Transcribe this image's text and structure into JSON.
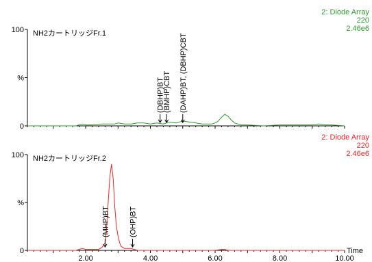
{
  "chart_data": [
    {
      "type": "line",
      "trace_title": "NH2カートリッジFr.1",
      "detector": {
        "label": "2: Diode Array",
        "channel": "220",
        "scale": "2.46e6"
      },
      "color": "#2e9a2e",
      "y_ticks": [
        {
          "value": 0,
          "label": "0"
        },
        {
          "value": 50,
          "label": "%"
        },
        {
          "value": 100,
          "label": "100"
        }
      ],
      "ylim": [
        0,
        100
      ],
      "xlim": [
        0.2,
        10.0
      ],
      "series": [
        {
          "x": [
            0.2,
            1.0,
            1.7,
            1.8,
            1.9,
            2.0,
            2.2,
            2.5,
            2.7,
            2.9,
            3.0,
            3.2,
            3.4,
            3.6,
            3.8,
            4.0,
            4.2,
            4.4,
            4.6,
            4.8,
            5.0,
            5.2,
            5.4,
            5.6,
            5.8,
            5.9,
            6.0,
            6.1,
            6.2,
            6.3,
            6.4,
            6.5,
            6.6,
            6.7,
            6.8,
            7.0,
            7.5,
            8.0,
            8.5,
            9.0,
            9.2,
            9.4,
            9.6,
            10.0
          ],
          "y": [
            0,
            0,
            0,
            1,
            2,
            1,
            1,
            2,
            2,
            2,
            3,
            2,
            2,
            3,
            3,
            2,
            3,
            2,
            4,
            3,
            5,
            4,
            3,
            2,
            2,
            2,
            3,
            5,
            9,
            12,
            10,
            6,
            3,
            2,
            1,
            1,
            0,
            1,
            1,
            1,
            2,
            1,
            1,
            0
          ]
        }
      ],
      "annotations": [
        {
          "label": "(DBHP)BT",
          "x": 4.3
        },
        {
          "label": "(BMHP)CBT",
          "x": 4.5
        },
        {
          "label": "(DAHP)BT, (DBHP)CBT",
          "x": 5.0
        }
      ]
    },
    {
      "type": "line",
      "trace_title": "NH2カートリッジFr.2",
      "detector": {
        "label": "2: Diode Array",
        "channel": "220",
        "scale": "2.46e6"
      },
      "color": "#e02828",
      "y_ticks": [
        {
          "value": 0,
          "label": "0"
        },
        {
          "value": 50,
          "label": "%"
        },
        {
          "value": 100,
          "label": "100"
        }
      ],
      "ylim": [
        0,
        100
      ],
      "xlim": [
        0.2,
        10.0
      ],
      "x_ticks": [
        {
          "value": 2,
          "label": "2.00"
        },
        {
          "value": 4,
          "label": "4.00"
        },
        {
          "value": 6,
          "label": "6.00"
        },
        {
          "value": 8,
          "label": "8.00"
        },
        {
          "value": 10,
          "label": "10.00"
        }
      ],
      "xlabel": "Time",
      "series": [
        {
          "x": [
            0.2,
            1.0,
            1.7,
            1.8,
            1.9,
            2.0,
            2.2,
            2.4,
            2.5,
            2.55,
            2.6,
            2.65,
            2.7,
            2.75,
            2.8,
            2.85,
            2.9,
            2.95,
            3.0,
            3.05,
            3.1,
            3.2,
            3.3,
            3.4,
            3.5,
            3.6,
            4.0,
            5.0,
            6.0,
            6.2,
            6.3,
            6.4,
            7.0,
            8.0,
            9.0,
            10.0
          ],
          "y": [
            0,
            0,
            0,
            1,
            2,
            1,
            1,
            1,
            3,
            5,
            8,
            25,
            52,
            78,
            90,
            75,
            45,
            25,
            15,
            8,
            4,
            2,
            2,
            2,
            1,
            0,
            0,
            0,
            0,
            1,
            1,
            0,
            0,
            0,
            0,
            0
          ]
        }
      ],
      "annotations": [
        {
          "label": "(MHP)BT",
          "x": 2.6
        },
        {
          "label": "(OHP)BT",
          "x": 3.45
        }
      ]
    }
  ]
}
